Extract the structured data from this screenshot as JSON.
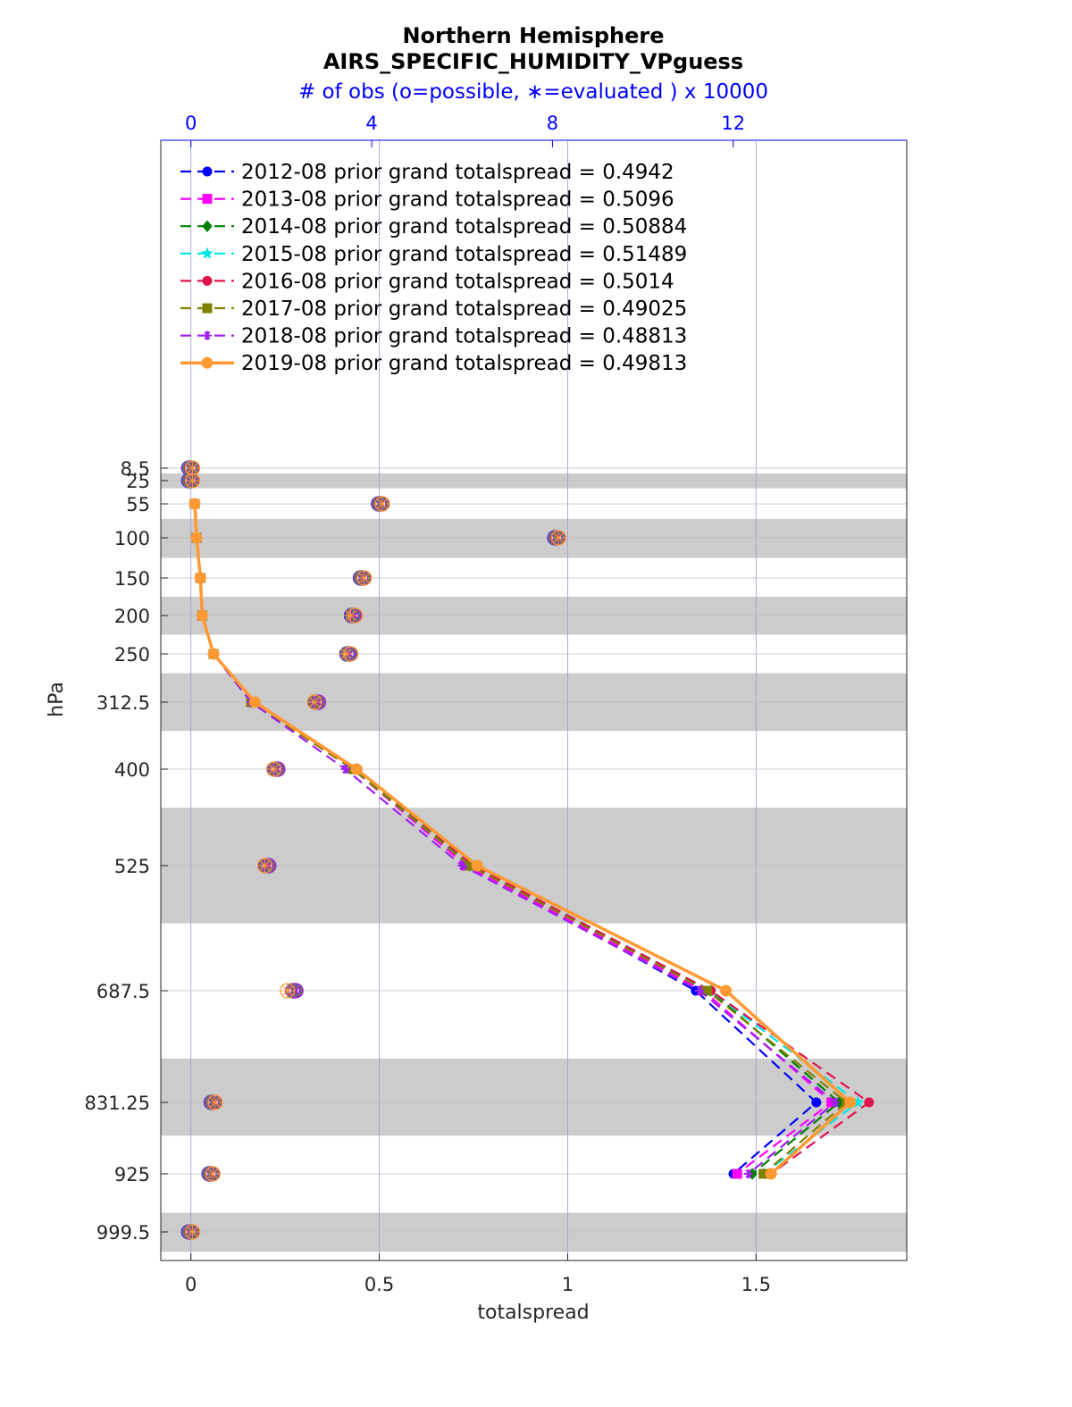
{
  "chart_data": {
    "type": "line",
    "title": "Northern Hemisphere",
    "subtitle": "AIRS_SPECIFIC_HUMIDITY_VPguess",
    "top_axis_label": "# of obs (o=possible, ∗=evaluated ) x 10000",
    "xlabel": "totalspread",
    "ylabel": "hPa",
    "xlim": [
      -0.08,
      1.9
    ],
    "top_xlim": [
      0,
      15.84
    ],
    "x_ticks": [
      0,
      0.5,
      1,
      1.5
    ],
    "x_tick_labels": [
      "0",
      "0.5",
      "1",
      "1.5"
    ],
    "top_ticks": [
      0,
      4,
      8,
      12
    ],
    "top_tick_labels": [
      "0",
      "4",
      "8",
      "12"
    ],
    "levels": [
      8.5,
      25,
      55,
      100,
      150,
      200,
      250,
      312.5,
      400,
      525,
      687.5,
      831.25,
      925,
      999.5
    ],
    "level_labels": [
      "8.5",
      "25",
      "55",
      "100",
      "150",
      "200",
      "250",
      "312.5",
      "400",
      "525",
      "687.5",
      "831.25",
      "925",
      "999.5"
    ],
    "bands": [
      [
        15.5,
        35
      ],
      [
        75,
        125
      ],
      [
        175,
        225
      ],
      [
        275,
        350
      ],
      [
        450,
        600
      ],
      [
        775,
        875
      ],
      [
        975,
        1025
      ]
    ],
    "legend_position": "top-left",
    "series": [
      {
        "name": "2012-08 prior grand totalspread = 0.4942",
        "color": "#0000ff",
        "style": "dashed",
        "marker": "circle",
        "values": [
          null,
          null,
          0.01,
          0.015,
          0.025,
          0.03,
          0.06,
          0.16,
          0.44,
          0.74,
          1.34,
          1.66,
          1.44,
          null
        ],
        "possible_obs": [
          0,
          0,
          4.2,
          8.1,
          3.8,
          3.6,
          3.5,
          2.8,
          1.9,
          1.7,
          2.3,
          0.5,
          0.45,
          0
        ],
        "evaluated_obs": [
          0,
          0,
          4.2,
          8.1,
          3.8,
          3.6,
          3.5,
          2.8,
          1.9,
          1.7,
          2.3,
          0.5,
          0.45,
          0
        ]
      },
      {
        "name": "2013-08 prior grand totalspread = 0.5096",
        "color": "#ff00ff",
        "style": "dashed",
        "marker": "square",
        "values": [
          null,
          null,
          0.01,
          0.015,
          0.025,
          0.03,
          0.06,
          0.16,
          0.43,
          0.73,
          1.36,
          1.7,
          1.45,
          null
        ],
        "possible_obs": [
          0,
          0,
          4.2,
          8.1,
          3.8,
          3.6,
          3.5,
          2.8,
          1.9,
          1.7,
          2.3,
          0.5,
          0.45,
          0
        ],
        "evaluated_obs": [
          0,
          0,
          4.2,
          8.1,
          3.8,
          3.6,
          3.5,
          2.8,
          1.9,
          1.7,
          2.3,
          0.5,
          0.45,
          0
        ]
      },
      {
        "name": "2014-08 prior grand totalspread = 0.50884",
        "color": "#008000",
        "style": "dashed",
        "marker": "diamond",
        "values": [
          null,
          null,
          0.01,
          0.015,
          0.025,
          0.03,
          0.06,
          0.16,
          0.44,
          0.74,
          1.38,
          1.72,
          1.49,
          null
        ],
        "possible_obs": [
          0,
          0,
          4.2,
          8.1,
          3.8,
          3.6,
          3.5,
          2.8,
          1.9,
          1.7,
          2.3,
          0.5,
          0.45,
          0
        ],
        "evaluated_obs": [
          0,
          0,
          4.2,
          8.1,
          3.8,
          3.6,
          3.5,
          2.8,
          1.9,
          1.7,
          2.3,
          0.5,
          0.45,
          0
        ]
      },
      {
        "name": "2015-08 prior grand totalspread = 0.51489",
        "color": "#00e5e5",
        "style": "dashed",
        "marker": "star",
        "values": [
          null,
          null,
          0.01,
          0.015,
          0.025,
          0.03,
          0.06,
          0.16,
          0.44,
          0.75,
          1.38,
          1.77,
          1.52,
          null
        ],
        "possible_obs": [
          0,
          0,
          4.2,
          8.1,
          3.8,
          3.6,
          3.5,
          2.8,
          1.9,
          1.7,
          2.3,
          0.5,
          0.45,
          0
        ],
        "evaluated_obs": [
          0,
          0,
          4.2,
          8.1,
          3.8,
          3.6,
          3.5,
          2.8,
          1.9,
          1.7,
          2.3,
          0.5,
          0.45,
          0
        ]
      },
      {
        "name": "2016-08 prior grand totalspread = 0.5014",
        "color": "#e0144c",
        "style": "dashed",
        "marker": "hexagram",
        "values": [
          null,
          null,
          0.01,
          0.015,
          0.025,
          0.03,
          0.06,
          0.16,
          0.44,
          0.75,
          1.38,
          1.8,
          1.54,
          null
        ],
        "possible_obs": [
          0,
          0,
          4.2,
          8.1,
          3.8,
          3.6,
          3.5,
          2.8,
          1.9,
          1.7,
          2.3,
          0.5,
          0.45,
          0
        ],
        "evaluated_obs": [
          0,
          0,
          4.2,
          8.1,
          3.8,
          3.6,
          3.5,
          2.8,
          1.9,
          1.7,
          2.3,
          0.5,
          0.45,
          0
        ]
      },
      {
        "name": "2017-08 prior grand totalspread = 0.49025",
        "color": "#808000",
        "style": "dashed",
        "marker": "square",
        "values": [
          null,
          null,
          0.01,
          0.015,
          0.025,
          0.03,
          0.06,
          0.16,
          0.43,
          0.74,
          1.37,
          1.74,
          1.52,
          null
        ],
        "possible_obs": [
          0,
          0,
          4.2,
          8.1,
          3.8,
          3.6,
          3.5,
          2.8,
          1.9,
          1.7,
          2.3,
          0.5,
          0.45,
          0
        ],
        "evaluated_obs": [
          0,
          0,
          4.2,
          8.1,
          3.8,
          3.6,
          3.5,
          2.8,
          1.9,
          1.7,
          2.3,
          0.5,
          0.45,
          0
        ]
      },
      {
        "name": "2018-08 prior grand totalspread = 0.48813",
        "color": "#a020f0",
        "style": "dashed",
        "marker": "asterisk",
        "values": [
          null,
          null,
          0.01,
          0.015,
          0.025,
          0.03,
          0.06,
          0.16,
          0.41,
          0.72,
          1.35,
          1.71,
          1.48,
          null
        ],
        "possible_obs": [
          0,
          0,
          4.2,
          8.1,
          3.8,
          3.6,
          3.5,
          2.8,
          1.9,
          1.7,
          2.3,
          0.5,
          0.45,
          0
        ],
        "evaluated_obs": [
          0,
          0,
          4.2,
          8.1,
          3.8,
          3.6,
          3.5,
          2.8,
          1.9,
          1.7,
          2.3,
          0.5,
          0.45,
          0
        ]
      },
      {
        "name": "2019-08 prior grand totalspread = 0.49813",
        "color": "#ff9933",
        "style": "solid",
        "marker": "circle",
        "values": [
          null,
          null,
          0.01,
          0.015,
          0.025,
          0.03,
          0.06,
          0.17,
          0.44,
          0.76,
          1.42,
          1.75,
          1.54,
          null
        ],
        "possible_obs": [
          0,
          0,
          4.2,
          8.1,
          3.8,
          3.6,
          3.5,
          2.7,
          1.8,
          1.6,
          2.1,
          0.5,
          0.45,
          0
        ],
        "evaluated_obs": [
          0,
          0,
          4.2,
          8.1,
          3.8,
          3.5,
          3.4,
          2.7,
          1.8,
          1.6,
          2.1,
          0.5,
          0.45,
          0
        ]
      }
    ]
  }
}
